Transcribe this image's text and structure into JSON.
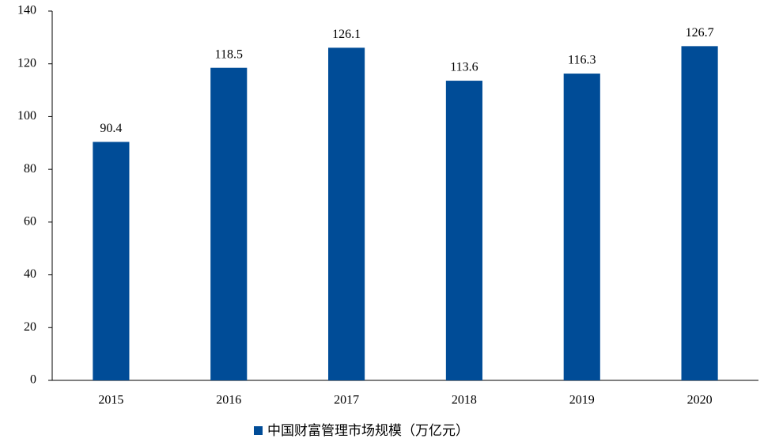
{
  "chart_data": {
    "type": "bar",
    "categories": [
      "2015",
      "2016",
      "2017",
      "2018",
      "2019",
      "2020"
    ],
    "series": [
      {
        "name": "中国财富管理市场规模（万亿元）",
        "color": "#004c97",
        "values": [
          90.4,
          118.5,
          126.1,
          113.6,
          116.3,
          126.7
        ]
      }
    ],
    "ylim": [
      0,
      140
    ],
    "yticks": [
      0,
      20,
      40,
      60,
      80,
      100,
      120,
      140
    ],
    "grid": false,
    "legend": "bottom"
  }
}
